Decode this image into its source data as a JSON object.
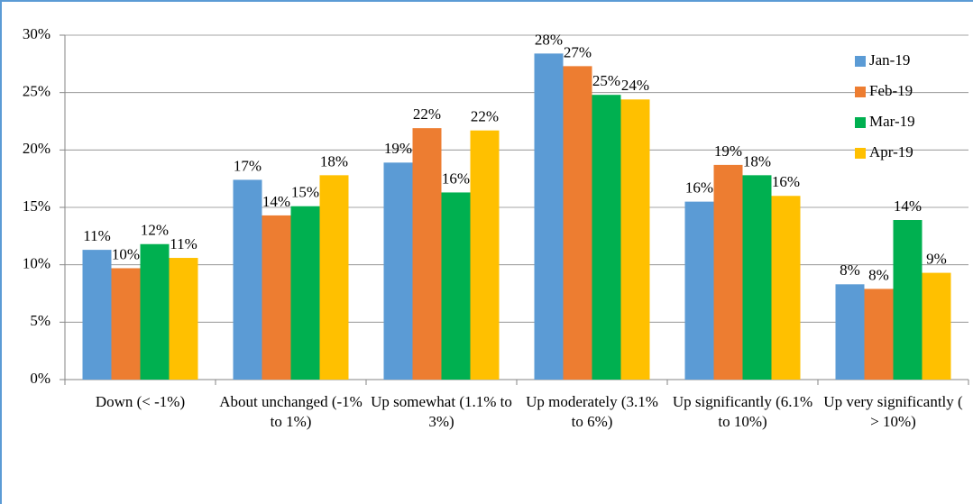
{
  "chart_data": {
    "type": "bar",
    "categories": [
      "Down (< -1%)",
      "About unchanged (-1% to 1%)",
      "Up somewhat (1.1% to 3%)",
      "Up moderately (3.1% to 6%)",
      "Up significantly (6.1% to 10%)",
      "Up very significantly ( > 10%)"
    ],
    "series": [
      {
        "name": "Jan-19",
        "color": "#5b9bd5",
        "values": [
          11.3,
          17.4,
          18.9,
          28.4,
          15.5,
          8.3
        ],
        "value_labels": [
          "11%",
          "17%",
          "19%",
          "28%",
          "16%",
          "8%"
        ]
      },
      {
        "name": "Feb-19",
        "color": "#ed7d31",
        "values": [
          9.7,
          14.3,
          21.9,
          27.3,
          18.7,
          7.9
        ],
        "value_labels": [
          "10%",
          "14%",
          "22%",
          "27%",
          "19%",
          "8%"
        ]
      },
      {
        "name": "Mar-19",
        "color": "#00b050",
        "values": [
          11.8,
          15.1,
          16.3,
          24.8,
          17.8,
          13.9
        ],
        "value_labels": [
          "12%",
          "15%",
          "16%",
          "25%",
          "18%",
          "14%"
        ]
      },
      {
        "name": "Apr-19",
        "color": "#ffc000",
        "values": [
          10.6,
          17.8,
          21.7,
          24.4,
          16.0,
          9.3
        ],
        "value_labels": [
          "11%",
          "18%",
          "22%",
          "24%",
          "16%",
          "9%"
        ]
      }
    ],
    "ylim": [
      0,
      30
    ],
    "yticks": [
      {
        "value": 0,
        "label": "0%"
      },
      {
        "value": 5,
        "label": "5%"
      },
      {
        "value": 10,
        "label": "10%"
      },
      {
        "value": 15,
        "label": "15%"
      },
      {
        "value": 20,
        "label": "20%"
      },
      {
        "value": 25,
        "label": "25%"
      },
      {
        "value": 30,
        "label": "30%"
      }
    ],
    "grid": true,
    "legend": "top-right"
  }
}
